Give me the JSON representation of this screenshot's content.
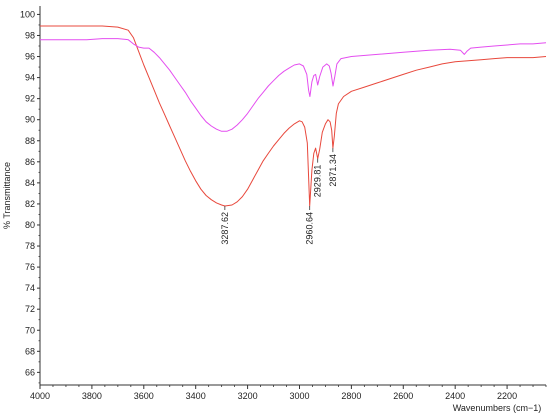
{
  "chart_data": {
    "type": "line",
    "xlabel": "Wavenumbers (cm−1)",
    "ylabel": "% Transmittance",
    "xlim": [
      4000,
      2050
    ],
    "ylim": [
      64.8,
      100.8
    ],
    "x_ticks": [
      4000,
      3800,
      3600,
      3400,
      3200,
      3000,
      2800,
      2600,
      2400,
      2200
    ],
    "y_ticks": [
      66,
      68,
      70,
      72,
      74,
      76,
      78,
      80,
      82,
      84,
      86,
      88,
      90,
      92,
      94,
      96,
      98,
      100
    ],
    "grid": false,
    "series": [
      {
        "color": "#e8483c",
        "points": [
          [
            4000,
            98.9
          ],
          [
            3900,
            98.9
          ],
          [
            3820,
            98.9
          ],
          [
            3760,
            98.9
          ],
          [
            3700,
            98.8
          ],
          [
            3660,
            98.5
          ],
          [
            3640,
            97.8
          ],
          [
            3620,
            96.5
          ],
          [
            3600,
            95.2
          ],
          [
            3580,
            94.0
          ],
          [
            3560,
            92.8
          ],
          [
            3540,
            91.6
          ],
          [
            3520,
            90.5
          ],
          [
            3500,
            89.4
          ],
          [
            3480,
            88.3
          ],
          [
            3460,
            87.2
          ],
          [
            3440,
            86.1
          ],
          [
            3420,
            85.1
          ],
          [
            3400,
            84.2
          ],
          [
            3380,
            83.4
          ],
          [
            3360,
            82.8
          ],
          [
            3340,
            82.4
          ],
          [
            3320,
            82.1
          ],
          [
            3300,
            81.9
          ],
          [
            3287.62,
            81.8
          ],
          [
            3260,
            81.9
          ],
          [
            3240,
            82.2
          ],
          [
            3220,
            82.7
          ],
          [
            3200,
            83.4
          ],
          [
            3180,
            84.3
          ],
          [
            3160,
            85.2
          ],
          [
            3140,
            86.1
          ],
          [
            3120,
            86.8
          ],
          [
            3100,
            87.5
          ],
          [
            3080,
            88.1
          ],
          [
            3060,
            88.7
          ],
          [
            3040,
            89.2
          ],
          [
            3020,
            89.6
          ],
          [
            3000,
            89.9
          ],
          [
            2990,
            89.8
          ],
          [
            2980,
            89.3
          ],
          [
            2970,
            87.8
          ],
          [
            2960.64,
            81.8
          ],
          [
            2952,
            85.2
          ],
          [
            2945,
            86.8
          ],
          [
            2938,
            87.3
          ],
          [
            2929.81,
            86.3
          ],
          [
            2922,
            87.2
          ],
          [
            2912,
            88.8
          ],
          [
            2900,
            89.6
          ],
          [
            2890,
            90.0
          ],
          [
            2882,
            89.8
          ],
          [
            2876,
            89.0
          ],
          [
            2871.34,
            87.3
          ],
          [
            2866,
            88.4
          ],
          [
            2858,
            90.6
          ],
          [
            2850,
            91.5
          ],
          [
            2830,
            92.2
          ],
          [
            2800,
            92.7
          ],
          [
            2750,
            93.1
          ],
          [
            2700,
            93.5
          ],
          [
            2650,
            93.9
          ],
          [
            2600,
            94.3
          ],
          [
            2550,
            94.7
          ],
          [
            2500,
            95.0
          ],
          [
            2450,
            95.3
          ],
          [
            2400,
            95.5
          ],
          [
            2350,
            95.6
          ],
          [
            2300,
            95.7
          ],
          [
            2250,
            95.8
          ],
          [
            2200,
            95.9
          ],
          [
            2150,
            95.9
          ],
          [
            2100,
            95.9
          ],
          [
            2050,
            96.0
          ]
        ]
      },
      {
        "color": "#e44ef0",
        "points": [
          [
            4000,
            97.6
          ],
          [
            3900,
            97.6
          ],
          [
            3820,
            97.6
          ],
          [
            3760,
            97.7
          ],
          [
            3700,
            97.7
          ],
          [
            3660,
            97.6
          ],
          [
            3640,
            97.2
          ],
          [
            3620,
            96.9
          ],
          [
            3600,
            96.8
          ],
          [
            3580,
            96.8
          ],
          [
            3560,
            96.4
          ],
          [
            3540,
            95.9
          ],
          [
            3520,
            95.3
          ],
          [
            3500,
            94.7
          ],
          [
            3480,
            94.0
          ],
          [
            3460,
            93.3
          ],
          [
            3440,
            92.6
          ],
          [
            3420,
            91.8
          ],
          [
            3400,
            91.1
          ],
          [
            3380,
            90.4
          ],
          [
            3360,
            89.8
          ],
          [
            3340,
            89.4
          ],
          [
            3320,
            89.1
          ],
          [
            3300,
            88.9
          ],
          [
            3280,
            88.9
          ],
          [
            3260,
            89.1
          ],
          [
            3240,
            89.5
          ],
          [
            3220,
            90.0
          ],
          [
            3200,
            90.6
          ],
          [
            3180,
            91.3
          ],
          [
            3160,
            92.0
          ],
          [
            3140,
            92.6
          ],
          [
            3120,
            93.2
          ],
          [
            3100,
            93.7
          ],
          [
            3080,
            94.2
          ],
          [
            3060,
            94.6
          ],
          [
            3040,
            94.9
          ],
          [
            3020,
            95.2
          ],
          [
            3000,
            95.3
          ],
          [
            2985,
            95.1
          ],
          [
            2972,
            94.3
          ],
          [
            2965,
            92.8
          ],
          [
            2960,
            92.2
          ],
          [
            2952,
            93.6
          ],
          [
            2945,
            94.2
          ],
          [
            2938,
            94.3
          ],
          [
            2930,
            93.3
          ],
          [
            2922,
            94.1
          ],
          [
            2910,
            95.0
          ],
          [
            2895,
            95.3
          ],
          [
            2885,
            95.1
          ],
          [
            2878,
            94.4
          ],
          [
            2871,
            93.2
          ],
          [
            2864,
            94.1
          ],
          [
            2856,
            95.3
          ],
          [
            2840,
            95.8
          ],
          [
            2800,
            96.0
          ],
          [
            2700,
            96.2
          ],
          [
            2600,
            96.4
          ],
          [
            2500,
            96.6
          ],
          [
            2420,
            96.7
          ],
          [
            2380,
            96.6
          ],
          [
            2365,
            96.2
          ],
          [
            2355,
            96.5
          ],
          [
            2340,
            96.8
          ],
          [
            2300,
            96.9
          ],
          [
            2250,
            97.0
          ],
          [
            2200,
            97.1
          ],
          [
            2150,
            97.2
          ],
          [
            2100,
            97.2
          ],
          [
            2050,
            97.3
          ]
        ]
      }
    ],
    "annotations": [
      {
        "label": "3287.62",
        "x": 3287.62,
        "y": 81.8
      },
      {
        "label": "2960.64",
        "x": 2960.64,
        "y": 81.8
      },
      {
        "label": "2929.81",
        "x": 2929.81,
        "y": 86.3
      },
      {
        "label": "2871.34",
        "x": 2871.34,
        "y": 87.3
      }
    ]
  }
}
